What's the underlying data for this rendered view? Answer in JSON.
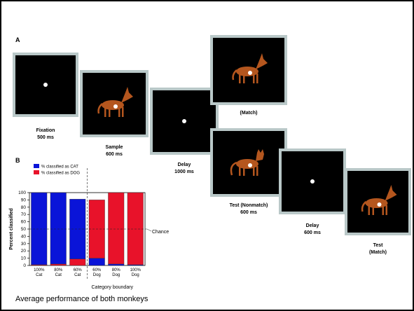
{
  "panel_a": {
    "label": "A",
    "stimuli": [
      {
        "lines": [
          "Fixation",
          "500 ms"
        ]
      },
      {
        "lines": [
          "Sample",
          "600 ms"
        ]
      },
      {
        "lines": [
          "Delay",
          "1000 ms"
        ]
      },
      {
        "lines": [
          "(Match)"
        ]
      },
      {
        "lines": [
          "Test (Nonmatch)",
          "600 ms"
        ]
      },
      {
        "lines": [
          "Delay",
          "600 ms"
        ]
      },
      {
        "lines": [
          "Test",
          "(Match)"
        ]
      }
    ]
  },
  "chart_data": {
    "type": "stacked_bar",
    "panel_label": "B",
    "ylabel": "Percent classified",
    "categories": [
      "100% Cat",
      "80% Cat",
      "60% Cat",
      "60% Dog",
      "80% Dog",
      "100% Dog"
    ],
    "series": [
      {
        "name": "% classified as CAT",
        "color": "#0a14d8",
        "values": [
          99,
          98,
          82,
          10,
          2,
          1
        ]
      },
      {
        "name": "% classified as DOG",
        "color": "#e8122a",
        "values": [
          1,
          2,
          9,
          80,
          98,
          99
        ]
      }
    ],
    "ylim": [
      0,
      100
    ],
    "yticks": [
      0,
      10,
      20,
      30,
      40,
      50,
      60,
      70,
      80,
      90,
      100
    ],
    "chance": {
      "text": "Chance",
      "value": 50
    },
    "boundary_label": "Category boundary"
  },
  "caption": "Average performance of both monkeys"
}
